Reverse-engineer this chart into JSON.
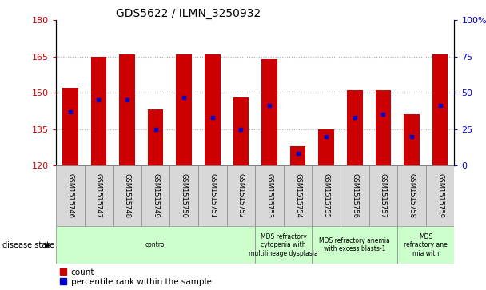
{
  "title": "GDS5622 / ILMN_3250932",
  "samples": [
    "GSM1515746",
    "GSM1515747",
    "GSM1515748",
    "GSM1515749",
    "GSM1515750",
    "GSM1515751",
    "GSM1515752",
    "GSM1515753",
    "GSM1515754",
    "GSM1515755",
    "GSM1515756",
    "GSM1515757",
    "GSM1515758",
    "GSM1515759"
  ],
  "counts": [
    152,
    165,
    166,
    143,
    166,
    166,
    148,
    164,
    128,
    135,
    151,
    151,
    141,
    166
  ],
  "percentile_ranks": [
    37,
    45,
    45,
    25,
    47,
    33,
    25,
    41,
    8,
    20,
    33,
    35,
    20,
    41
  ],
  "ymin": 120,
  "ymax": 180,
  "yticks": [
    120,
    135,
    150,
    165,
    180
  ],
  "right_yticks": [
    0,
    25,
    50,
    75,
    100
  ],
  "right_yticklabels": [
    "0",
    "25",
    "50",
    "75",
    "100%"
  ],
  "bar_color": "#cc0000",
  "dot_color": "#0000cc",
  "bar_width": 0.55,
  "disease_groups": [
    {
      "label": "control",
      "start": 0,
      "end": 7,
      "color": "#ccffcc"
    },
    {
      "label": "MDS refractory\ncytopenia with\nmultilineage dysplasia",
      "start": 7,
      "end": 9,
      "color": "#ccffcc"
    },
    {
      "label": "MDS refractory anemia\nwith excess blasts-1",
      "start": 9,
      "end": 12,
      "color": "#ccffcc"
    },
    {
      "label": "MDS\nrefractory ane\nmia with",
      "start": 12,
      "end": 14,
      "color": "#ccffcc"
    }
  ],
  "disease_state_label": "disease state",
  "legend_count_label": "count",
  "legend_pct_label": "percentile rank within the sample",
  "grid_color": "#aaaaaa",
  "tick_label_color_left": "#cc0000",
  "tick_label_color_right": "#0000cc",
  "bg_color": "#ffffff",
  "xticklabel_bg": "#d8d8d8"
}
